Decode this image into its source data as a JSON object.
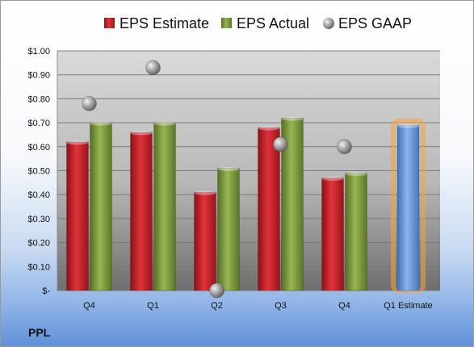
{
  "chart_data": {
    "type": "bar",
    "categories": [
      "Q4",
      "Q1",
      "Q2",
      "Q3",
      "Q4",
      "Q1 Estimate"
    ],
    "series": [
      {
        "name": "EPS Estimate",
        "kind": "bar",
        "color": "#c8202a",
        "values": [
          0.62,
          0.66,
          0.41,
          0.68,
          0.47,
          null
        ]
      },
      {
        "name": "EPS Actual",
        "kind": "bar",
        "color": "#7f9f3c",
        "values": [
          0.7,
          0.7,
          0.51,
          0.72,
          0.49,
          null
        ]
      },
      {
        "name": "EPS GAAP",
        "kind": "marker",
        "color": "#a0a0a0",
        "values": [
          0.78,
          0.93,
          0.0,
          0.61,
          0.6,
          null
        ]
      },
      {
        "name": "",
        "kind": "bar",
        "color": "#6f9edc",
        "highlight": "#f7a23a",
        "values": [
          null,
          null,
          null,
          null,
          null,
          0.69
        ]
      }
    ],
    "ylim": [
      0,
      1
    ],
    "yticks": [
      {
        "value": 0,
        "label": "$-"
      },
      {
        "value": 0.1,
        "label": "$0.10"
      },
      {
        "value": 0.2,
        "label": "$0.20"
      },
      {
        "value": 0.3,
        "label": "$0.30"
      },
      {
        "value": 0.4,
        "label": "$0.40"
      },
      {
        "value": 0.5,
        "label": "$0.50"
      },
      {
        "value": 0.6,
        "label": "$0.60"
      },
      {
        "value": 0.7,
        "label": "$0.70"
      },
      {
        "value": 0.8,
        "label": "$0.80"
      },
      {
        "value": 0.9,
        "label": "$0.90"
      },
      {
        "value": 1.0,
        "label": "$1.00"
      }
    ],
    "grid": true,
    "legend_position": "top"
  },
  "ticker": "PPL"
}
